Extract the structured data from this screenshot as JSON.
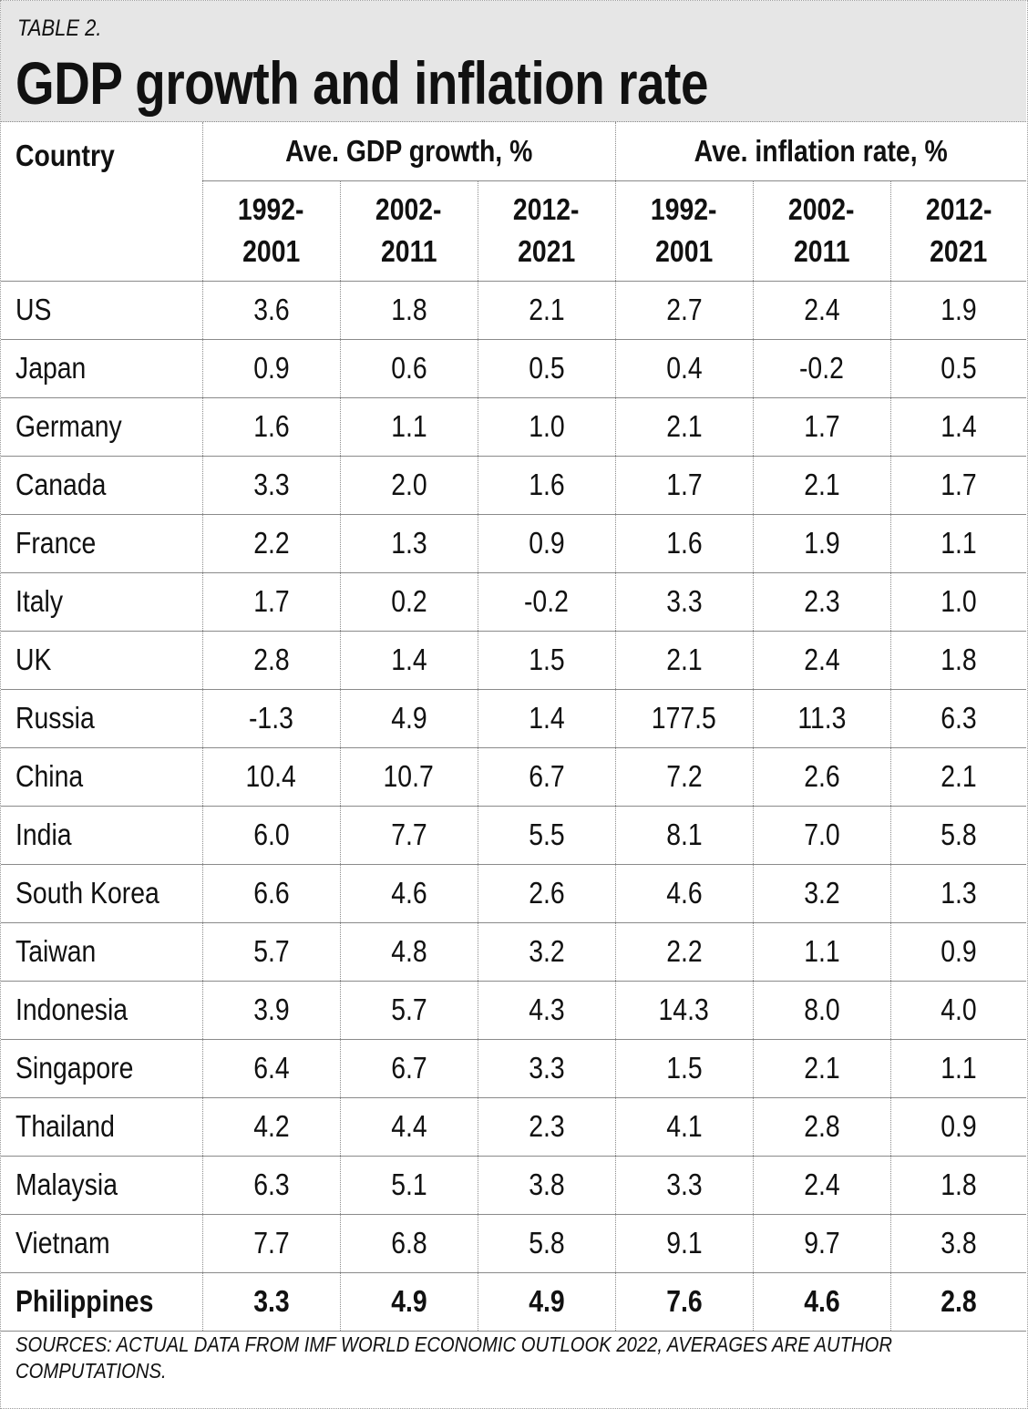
{
  "header": {
    "kicker": "TABLE 2.",
    "title": "GDP growth and inflation rate"
  },
  "chart_data": {
    "type": "table",
    "columns": {
      "country": "Country",
      "group_gdp": "Ave. GDP growth, %",
      "group_inflation": "Ave. inflation rate, %",
      "periods": [
        [
          "1992-",
          "2001"
        ],
        [
          "2002-",
          "2011"
        ],
        [
          "2012-",
          "2021"
        ]
      ]
    },
    "rows": [
      {
        "country": "US",
        "gdp": [
          "3.6",
          "1.8",
          "2.1"
        ],
        "inflation": [
          "2.7",
          "2.4",
          "1.9"
        ]
      },
      {
        "country": "Japan",
        "gdp": [
          "0.9",
          "0.6",
          "0.5"
        ],
        "inflation": [
          "0.4",
          "-0.2",
          "0.5"
        ]
      },
      {
        "country": "Germany",
        "gdp": [
          "1.6",
          "1.1",
          "1.0"
        ],
        "inflation": [
          "2.1",
          "1.7",
          "1.4"
        ]
      },
      {
        "country": "Canada",
        "gdp": [
          "3.3",
          "2.0",
          "1.6"
        ],
        "inflation": [
          "1.7",
          "2.1",
          "1.7"
        ]
      },
      {
        "country": "France",
        "gdp": [
          "2.2",
          "1.3",
          "0.9"
        ],
        "inflation": [
          "1.6",
          "1.9",
          "1.1"
        ]
      },
      {
        "country": "Italy",
        "gdp": [
          "1.7",
          "0.2",
          "-0.2"
        ],
        "inflation": [
          "3.3",
          "2.3",
          "1.0"
        ]
      },
      {
        "country": "UK",
        "gdp": [
          "2.8",
          "1.4",
          "1.5"
        ],
        "inflation": [
          "2.1",
          "2.4",
          "1.8"
        ]
      },
      {
        "country": "Russia",
        "gdp": [
          "-1.3",
          "4.9",
          "1.4"
        ],
        "inflation": [
          "177.5",
          "11.3",
          "6.3"
        ]
      },
      {
        "country": "China",
        "gdp": [
          "10.4",
          "10.7",
          "6.7"
        ],
        "inflation": [
          "7.2",
          "2.6",
          "2.1"
        ]
      },
      {
        "country": "India",
        "gdp": [
          "6.0",
          "7.7",
          "5.5"
        ],
        "inflation": [
          "8.1",
          "7.0",
          "5.8"
        ]
      },
      {
        "country": "South Korea",
        "gdp": [
          "6.6",
          "4.6",
          "2.6"
        ],
        "inflation": [
          "4.6",
          "3.2",
          "1.3"
        ]
      },
      {
        "country": "Taiwan",
        "gdp": [
          "5.7",
          "4.8",
          "3.2"
        ],
        "inflation": [
          "2.2",
          "1.1",
          "0.9"
        ]
      },
      {
        "country": "Indonesia",
        "gdp": [
          "3.9",
          "5.7",
          "4.3"
        ],
        "inflation": [
          "14.3",
          "8.0",
          "4.0"
        ]
      },
      {
        "country": "Singapore",
        "gdp": [
          "6.4",
          "6.7",
          "3.3"
        ],
        "inflation": [
          "1.5",
          "2.1",
          "1.1"
        ]
      },
      {
        "country": "Thailand",
        "gdp": [
          "4.2",
          "4.4",
          "2.3"
        ],
        "inflation": [
          "4.1",
          "2.8",
          "0.9"
        ]
      },
      {
        "country": "Malaysia",
        "gdp": [
          "6.3",
          "5.1",
          "3.8"
        ],
        "inflation": [
          "3.3",
          "2.4",
          "1.8"
        ]
      },
      {
        "country": "Vietnam",
        "gdp": [
          "7.7",
          "6.8",
          "5.8"
        ],
        "inflation": [
          "9.1",
          "9.7",
          "3.8"
        ]
      },
      {
        "country": "Philippines",
        "gdp": [
          "3.3",
          "4.9",
          "4.9"
        ],
        "inflation": [
          "7.6",
          "4.6",
          "2.8"
        ],
        "bold": true
      }
    ]
  },
  "footer": {
    "sources": "SOURCES: ACTUAL DATA FROM IMF WORLD ECONOMIC OUTLOOK 2022, AVERAGES ARE AUTHOR COMPUTATIONS."
  }
}
